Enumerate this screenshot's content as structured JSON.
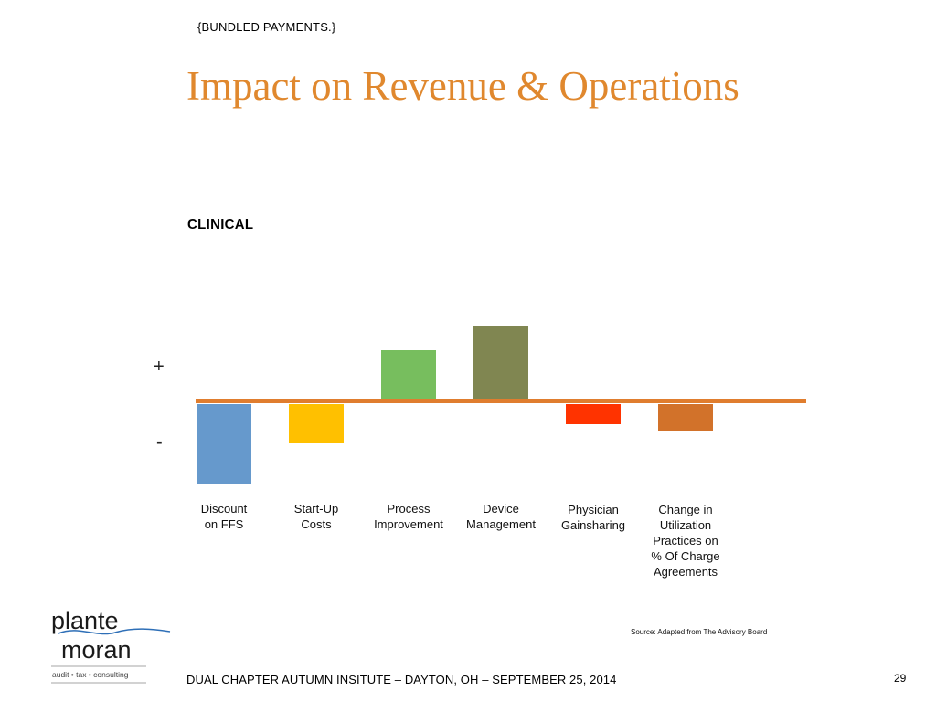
{
  "header": {
    "section_tag": "{BUNDLED PAYMENTS.}",
    "title": "Impact on Revenue & Operations"
  },
  "chart_data": {
    "type": "bar",
    "title": "CLINICAL",
    "positive_label": "+",
    "negative_label": "-",
    "categories": [
      "Discount\non FFS",
      "Start-Up\nCosts",
      "Process\nImprovement",
      "Device\nManagement",
      "Physician\nGainsharing",
      "Change in\nUtilization\nPractices on\n% Of Charge\nAgreements"
    ],
    "values": [
      -88,
      -43,
      54,
      80,
      -22,
      -29
    ],
    "colors": [
      "#6699CC",
      "#FFC000",
      "#77BE5E",
      "#808651",
      "#FF3300",
      "#D2722A"
    ],
    "baseline_color": "#E07D2E",
    "ylim": [
      -100,
      100
    ],
    "grid": false,
    "legend": "none"
  },
  "source": "Source: Adapted from The Advisory Board",
  "footer": {
    "text": "DUAL CHAPTER AUTUMN INSITUTE – DAYTON, OH – SEPTEMBER 25, 2014",
    "page_number": "29"
  },
  "logo": {
    "line1": "plante",
    "line2": "moran",
    "tagline": "audit • tax • consulting",
    "accent_color": "#2E6FB7"
  }
}
